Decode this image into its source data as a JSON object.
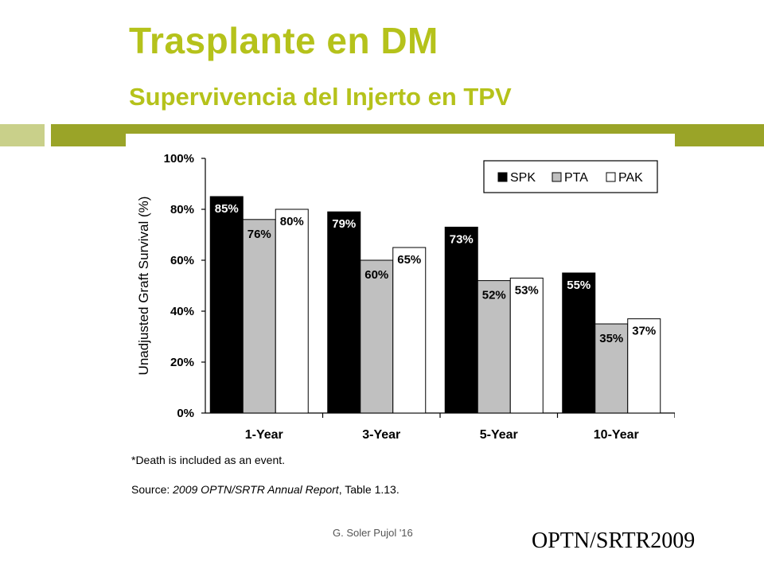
{
  "slide": {
    "title": "Trasplante en DM",
    "subtitle": "Supervivencia del Injerto en TPV",
    "author": "G. Soler Pujol '16",
    "reference": "OPTN/SRTR2009",
    "accent_color": "#b5c21b",
    "bar_color": "#9aa428"
  },
  "chart_data": {
    "type": "bar",
    "ylabel": "Unadjusted Graft Survival (%)",
    "ylim": [
      0,
      100
    ],
    "yticks": [
      "0%",
      "20%",
      "40%",
      "60%",
      "80%",
      "100%"
    ],
    "categories": [
      "1-Year",
      "3-Year",
      "5-Year",
      "10-Year"
    ],
    "legend_position": "top-right",
    "series": [
      {
        "name": "SPK",
        "color": "#000000",
        "values": [
          85,
          79,
          73,
          55
        ],
        "labels": [
          "85%",
          "79%",
          "73%",
          "55%"
        ]
      },
      {
        "name": "PTA",
        "color": "#c0c0c0",
        "values": [
          76,
          60,
          52,
          35
        ],
        "labels": [
          "76%",
          "60%",
          "52%",
          "35%"
        ]
      },
      {
        "name": "PAK",
        "color": "#ffffff",
        "values": [
          80,
          65,
          53,
          37
        ],
        "labels": [
          "80%",
          "65%",
          "53%",
          "37%"
        ]
      }
    ],
    "footnote": "*Death is included as an event.",
    "source_prefix": "Source: ",
    "source_italic": "2009 OPTN/SRTR Annual Report",
    "source_suffix": ", Table 1.13."
  }
}
